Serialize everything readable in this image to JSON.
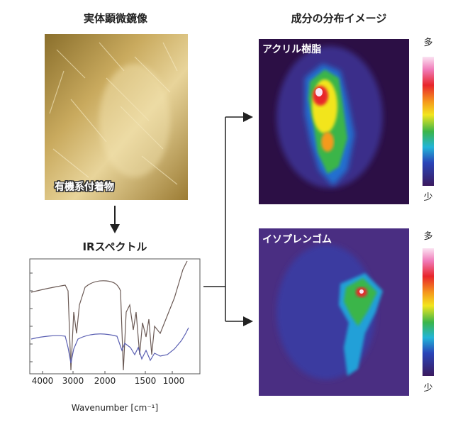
{
  "left": {
    "title": "実体顕微鏡像",
    "image_label": "有機系付着物"
  },
  "spectrum": {
    "title": "IRスペクトル",
    "xticks": [
      "4000",
      "3000",
      "2000",
      "1500",
      "1000"
    ],
    "xlabel": "Wavenumber [cm⁻¹]"
  },
  "right": {
    "title": "成分の分布イメージ",
    "maps": [
      {
        "label": "アクリル樹脂",
        "scale_high": "多",
        "scale_low": "少"
      },
      {
        "label": "イソプレンゴム",
        "scale_high": "多",
        "scale_low": "少"
      }
    ]
  }
}
